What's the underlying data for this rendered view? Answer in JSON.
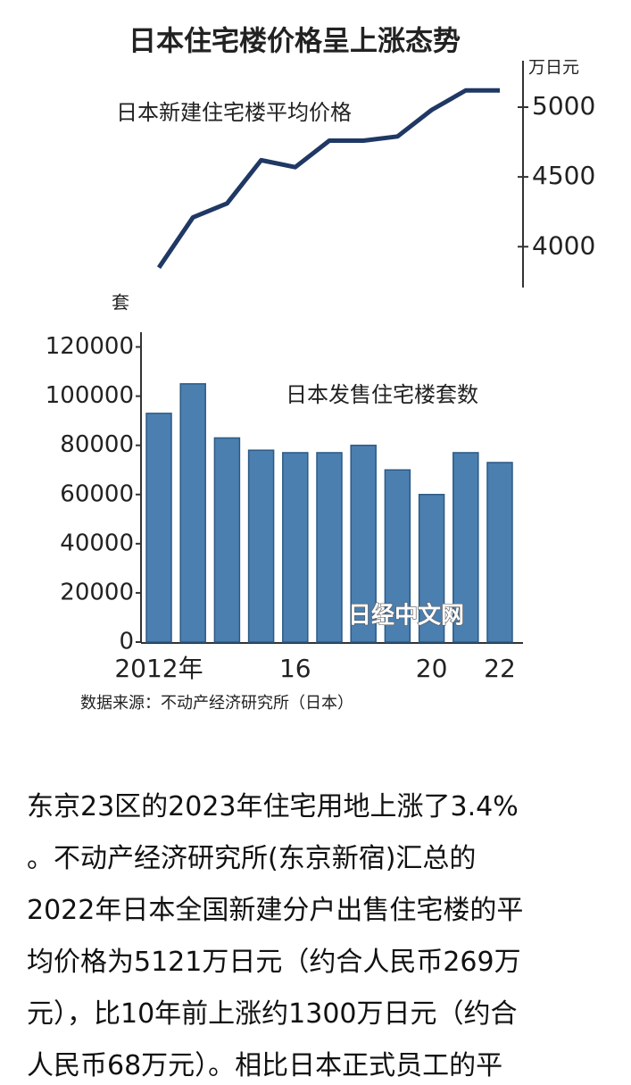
{
  "title": "日本住宅楼价格呈上涨态势",
  "chart_data": [
    {
      "type": "line",
      "title": "日本新建住宅楼平均价格",
      "y_unit": "万日元",
      "series": [
        {
          "name": "日本新建住宅楼平均价格",
          "color": "#1f3864",
          "values": [
            3850,
            4210,
            4310,
            4620,
            4570,
            4760,
            4760,
            4790,
            4980,
            5120,
            5120
          ]
        }
      ],
      "ylim": [
        3720,
        5320
      ],
      "yticks": [
        4000,
        4500,
        5000
      ]
    },
    {
      "type": "bar",
      "title": "日本发售住宅楼套数",
      "y_unit": "套",
      "color": "#4a7fb0",
      "categories": [
        "2012年",
        null,
        null,
        null,
        "16",
        null,
        null,
        null,
        "20",
        null,
        "22"
      ],
      "values": [
        93000,
        105000,
        83000,
        78000,
        77000,
        77000,
        80000,
        70000,
        60000,
        77000,
        73000
      ],
      "ylim": [
        0,
        126000
      ],
      "yticks": [
        0,
        20000,
        40000,
        60000,
        80000,
        100000,
        120000
      ]
    }
  ],
  "watermark": "日经中文网",
  "source": "数据来源：不动产经济研究所（日本）",
  "article": {
    "lines": [
      "东京23区的2023年住宅用地上涨了3.4%",
      "。不动产经济研究所(东京新宿)汇总的",
      "2022年日本全国新建分户出售住宅楼的平",
      "均价格为5121万日元（约合人民币269万",
      "元），比10年前上涨约1300万日元（约合",
      "人民币68万元）。相比日本正式员工的平"
    ]
  }
}
